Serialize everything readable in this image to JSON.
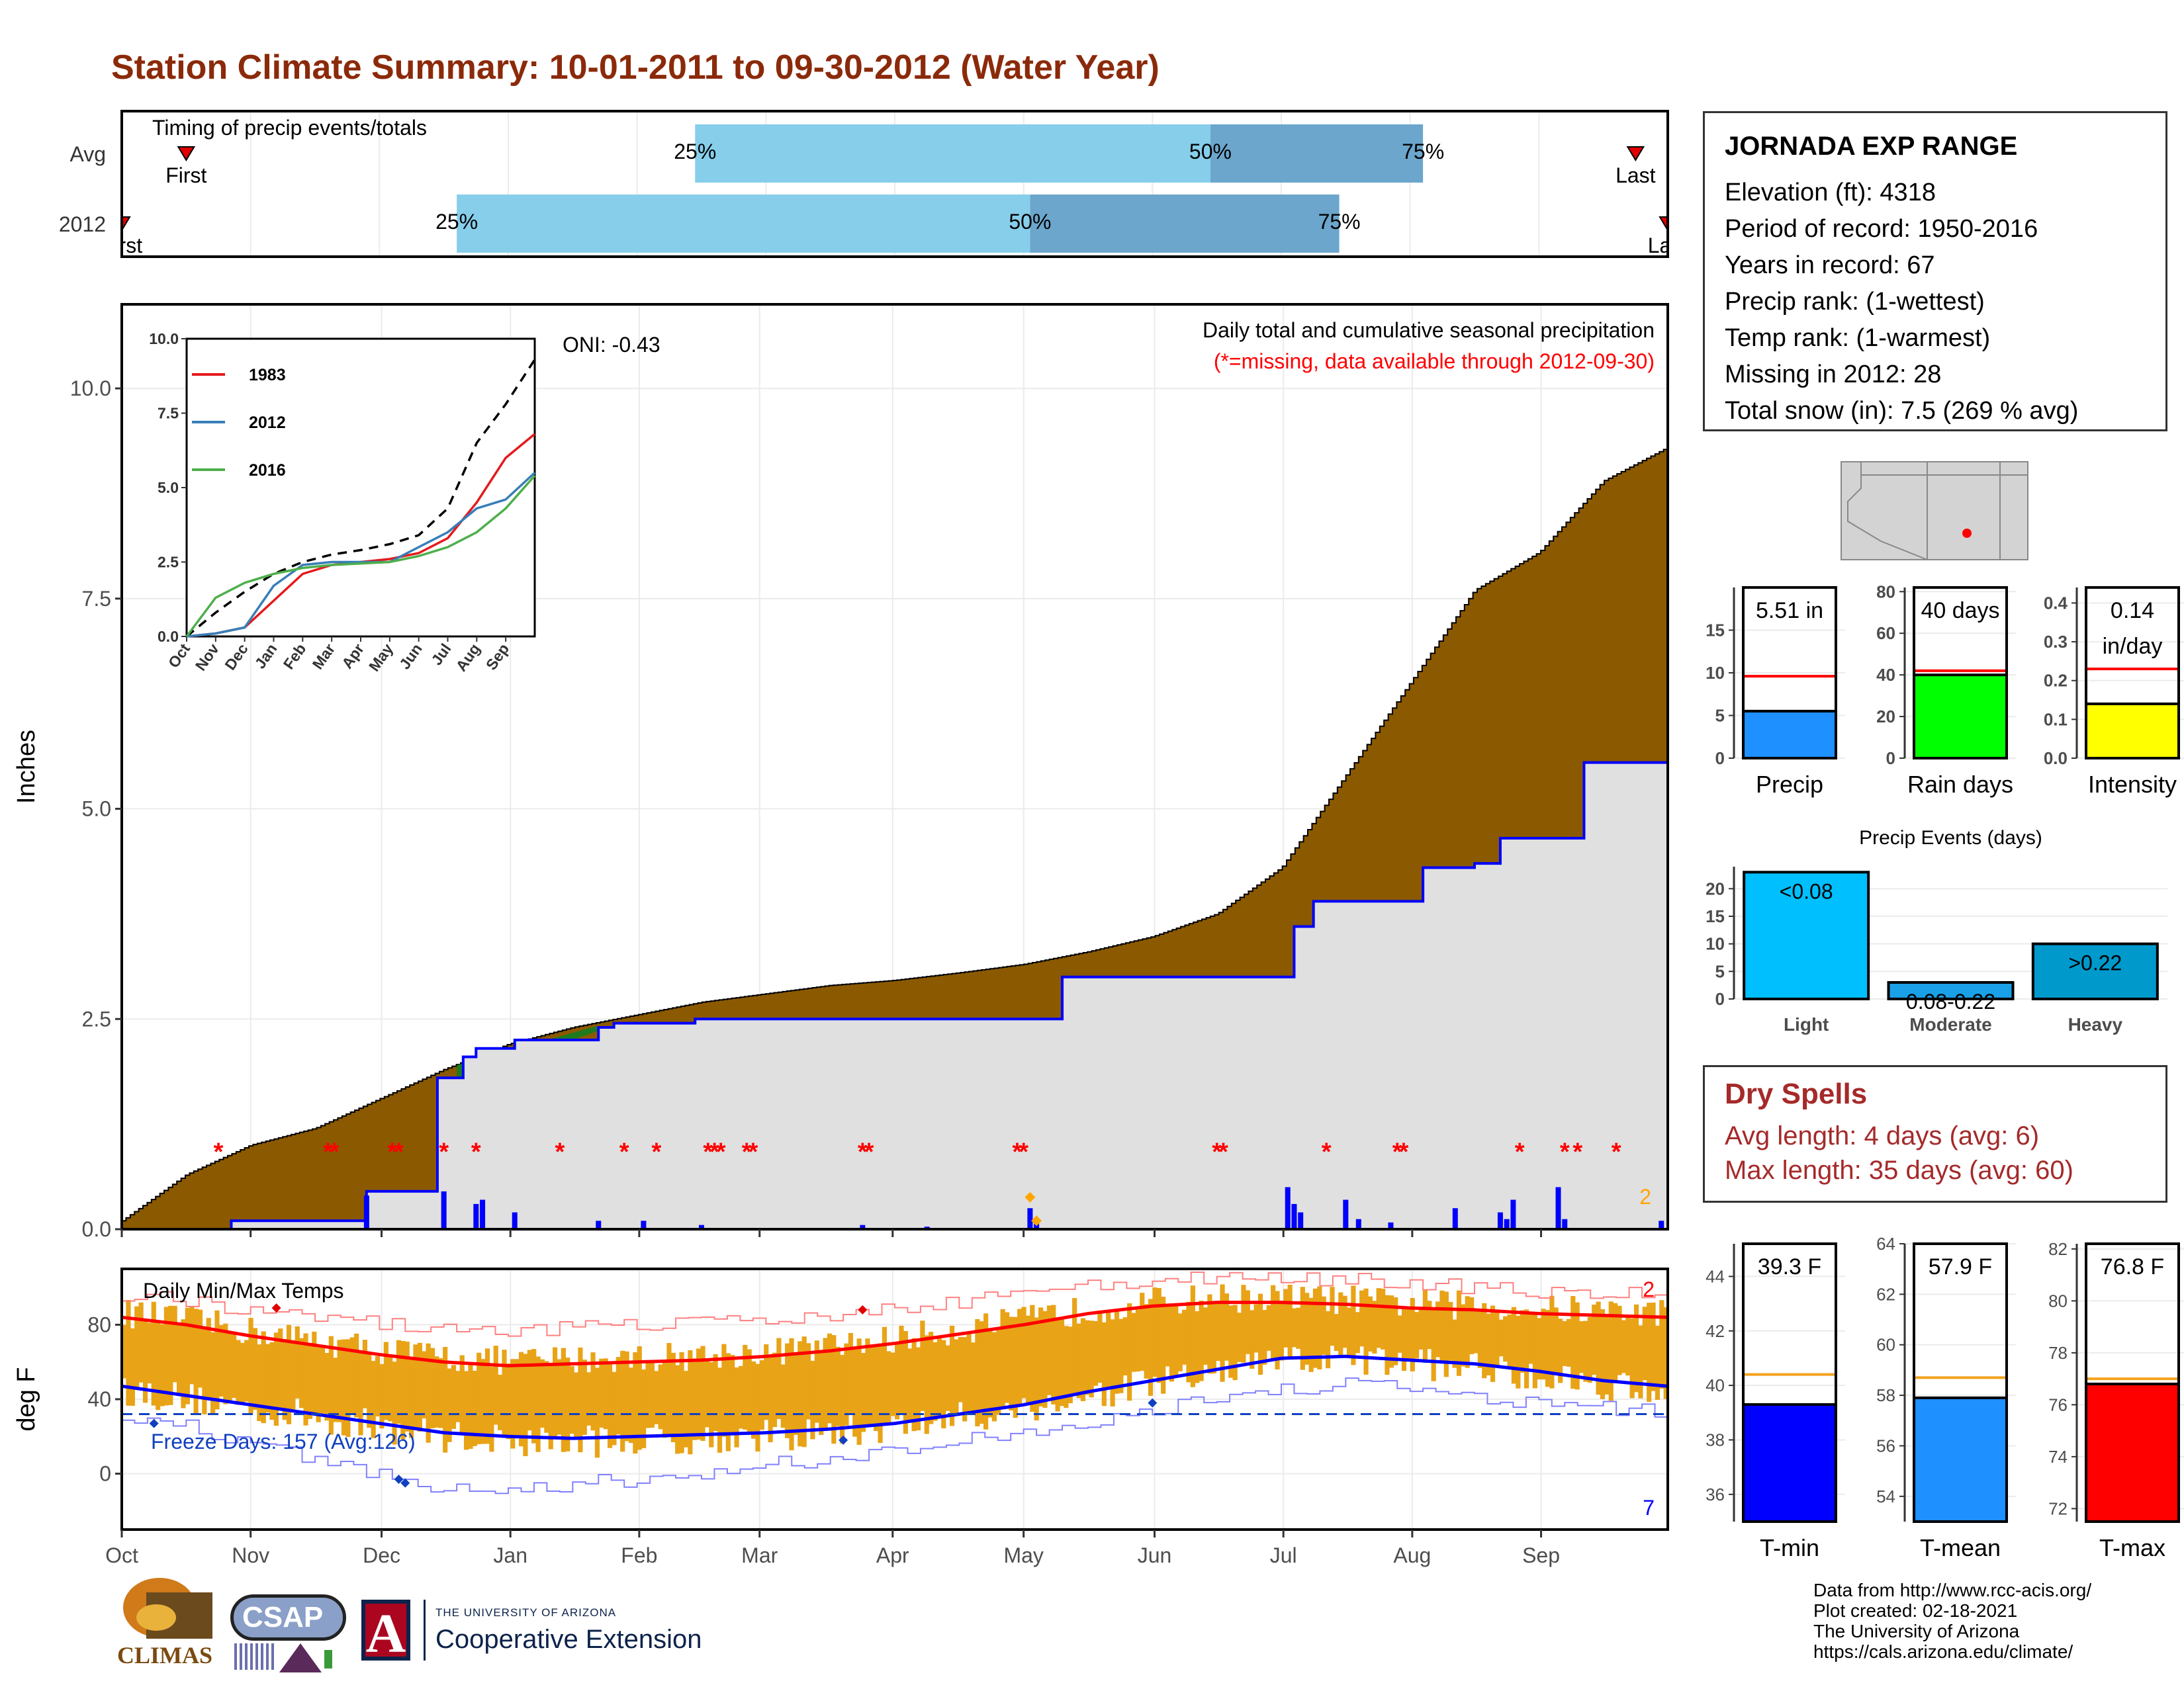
{
  "title": "Station Climate Summary: 10-01-2011 to 09-30-2012 (Water Year)",
  "colors": {
    "title": "#8B2A0A",
    "q_light": "#87CEEB",
    "q_dark": "#6CA6CD",
    "brown": "#8B5A00",
    "green": "#1E7B1E",
    "lightgray": "#E0E0E0",
    "blue": "#0000FF",
    "red": "#FF0000",
    "orange": "#E8A317",
    "avg_line": "#F4A21F",
    "precip_bar": "#1E90FF",
    "raindays_bar": "#00FF00",
    "intensity_bar": "#FFFF00",
    "light_bar": "#00BFFF",
    "moderate_bar": "#1AA0E6",
    "heavy_bar": "#0099CC",
    "tmin_bar": "#0000FF",
    "tmean_bar": "#1E90FF",
    "tmax_bar": "#FF0000",
    "dryspell": "#A52A2A"
  },
  "timing": {
    "title": "Timing of precip events/totals",
    "rows": [
      {
        "label": "Avg",
        "first_label": "First",
        "last_label": "Last",
        "first": 0.5,
        "last": 11.75,
        "q25": 4.45,
        "q50": 8.45,
        "q75": 10.1,
        "q25_label": "25%",
        "q50_label": "50%",
        "q75_label": "75%"
      },
      {
        "label": "2012",
        "first_label": "First",
        "last_label": "Last",
        "first": 0.0,
        "last": 12.0,
        "q25": 2.6,
        "q50": 7.05,
        "q75": 9.45,
        "q25_label": "25%",
        "q50_label": "50%",
        "q75_label": "75%"
      }
    ]
  },
  "precip_panel": {
    "ylabel": "Inches",
    "note1": "Daily total and cumulative seasonal precipitation",
    "note2": "(*=missing, data available through 2012-09-30)",
    "oni": "ONI: -0.43",
    "corner_value": "2",
    "yticks": [
      0.0,
      2.5,
      5.0,
      7.5,
      10.0
    ],
    "ytick_labels": [
      "0.0",
      "2.5",
      "5.0",
      "7.5",
      "10.0"
    ],
    "ylim": [
      0,
      11
    ]
  },
  "inset": {
    "xticks": [
      "Oct",
      "Nov",
      "Dec",
      "Jan",
      "Feb",
      "Mar",
      "Apr",
      "May",
      "Jun",
      "Jul",
      "Aug",
      "Sep"
    ],
    "yticks": [
      0.0,
      2.5,
      5.0,
      7.5,
      10.0
    ],
    "ytick_labels": [
      "0.0",
      "2.5",
      "5.0",
      "7.5",
      "10.0"
    ],
    "legend": [
      {
        "name": "1983",
        "color": "#E41A1C"
      },
      {
        "name": "2012",
        "color": "#377EB8"
      },
      {
        "name": "2016",
        "color": "#4DAF4A"
      }
    ]
  },
  "temp_panel": {
    "title": "Daily Min/Max Temps",
    "ylabel": "deg F",
    "freeze_label": "Freeze Days: 157 (Avg:126)",
    "corner_top": "2",
    "corner_bottom": "7",
    "yticks": [
      0,
      40,
      80
    ],
    "ytick_labels": [
      "0",
      "40",
      "80"
    ]
  },
  "months": [
    "Oct",
    "Nov",
    "Dec",
    "Jan",
    "Feb",
    "Mar",
    "Apr",
    "May",
    "Jun",
    "Jul",
    "Aug",
    "Sep"
  ],
  "station": {
    "name": "JORNADA EXP RANGE",
    "lines": [
      "Elevation (ft): 4318",
      "Period of record: 1950-2016",
      "Years in record: 67",
      "Precip rank:  (1-wettest)",
      "Temp rank:  (1-warmest)",
      "Missing in 2012: 28",
      "Total snow (in): 7.5 (269 % avg)"
    ]
  },
  "summary_bars": [
    {
      "label": "Precip",
      "value_label": "5.51 in",
      "value": 5.51,
      "avg": 9.6,
      "ymax": 20,
      "ticks": [
        0,
        5,
        10,
        15
      ],
      "tick_labels": [
        "0",
        "5",
        "10",
        "15"
      ],
      "color_key": "precip_bar"
    },
    {
      "label": "Rain days",
      "value_label": "40 days",
      "value": 40,
      "avg": 42,
      "ymax": 82,
      "ticks": [
        0,
        20,
        40,
        60,
        80
      ],
      "tick_labels": [
        "0",
        "20",
        "40",
        "60",
        "80"
      ],
      "color_key": "raindays_bar"
    },
    {
      "label": "Intensity",
      "value_label": "0.14",
      "value_label2": "in/day",
      "value": 0.14,
      "avg": 0.23,
      "ymax": 0.44,
      "ticks": [
        0.0,
        0.1,
        0.2,
        0.3,
        0.4
      ],
      "tick_labels": [
        "0.0",
        "0.1",
        "0.2",
        "0.3",
        "0.4"
      ],
      "color_key": "intensity_bar"
    }
  ],
  "events": {
    "title": "Precip Events (days)",
    "categories": [
      "Light",
      "Moderate",
      "Heavy"
    ],
    "bar_labels": [
      "<0.08",
      "0.08-0.22",
      ">0.22"
    ],
    "values": [
      23,
      3,
      10
    ],
    "ymax": 24,
    "ticks": [
      0,
      5,
      10,
      15,
      20
    ],
    "tick_labels": [
      "0",
      "5",
      "10",
      "15",
      "20"
    ]
  },
  "dry_spells": {
    "title": "Dry Spells",
    "line1": "Avg length: 4 days (avg: 6)",
    "line2": "Max length: 35 days (avg: 60)"
  },
  "temp_bars": [
    {
      "label": "T-min",
      "value_label": "39.3 F",
      "value": 39.3,
      "avg": 40.4,
      "ymin": 35,
      "ymax": 45.2,
      "ticks": [
        36,
        38,
        40,
        42,
        44
      ],
      "tick_labels": [
        "36",
        "38",
        "40",
        "42",
        "44"
      ],
      "color_key": "tmin_bar"
    },
    {
      "label": "T-mean",
      "value_label": "57.9 F",
      "value": 57.9,
      "avg": 58.7,
      "ymin": 53,
      "ymax": 64,
      "ticks": [
        54,
        56,
        58,
        60,
        62,
        64
      ],
      "tick_labels": [
        "54",
        "56",
        "58",
        "60",
        "62",
        "64"
      ],
      "color_key": "tmean_bar"
    },
    {
      "label": "T-max",
      "value_label": "76.8 F",
      "value": 76.8,
      "avg": 77.0,
      "ymin": 71.5,
      "ymax": 82.2,
      "ticks": [
        72,
        74,
        76,
        78,
        80,
        82
      ],
      "tick_labels": [
        "72",
        "74",
        "76",
        "78",
        "80",
        "82"
      ],
      "color_key": "tmax_bar"
    }
  ],
  "credits": [
    "Data from http://www.rcc-acis.org/",
    "Plot created: 02-18-2021",
    "The University of Arizona",
    "https://cals.arizona.edu/climate/"
  ],
  "logos": {
    "climas": "CLIMAS",
    "csap": "CSAP",
    "ua_small": "THE UNIVERSITY OF ARIZONA",
    "ua_big": "Cooperative Extension",
    "ua_letter": "A"
  },
  "chart_data": [
    {
      "type": "area",
      "title": "Daily total and cumulative seasonal precipitation",
      "ylabel": "Inches",
      "ylim": [
        0,
        11
      ],
      "x_unit": "month index from Oct 1 (0-12)",
      "avg_cumulative": {
        "x": [
          0,
          0.5,
          1,
          1.5,
          2,
          2.5,
          3,
          3.5,
          4,
          4.5,
          5,
          5.5,
          6,
          6.5,
          7,
          7.5,
          8,
          8.5,
          9,
          9.5,
          10,
          10.5,
          11,
          11.5,
          12
        ],
        "y": [
          0.1,
          0.65,
          1.0,
          1.2,
          1.55,
          1.9,
          2.2,
          2.4,
          2.55,
          2.7,
          2.8,
          2.9,
          2.96,
          3.05,
          3.15,
          3.3,
          3.48,
          3.75,
          4.3,
          5.4,
          6.5,
          7.6,
          8.05,
          8.9,
          9.3
        ]
      },
      "observed_2012": {
        "x": [
          0,
          0.85,
          1.75,
          1.9,
          2.1,
          2.45,
          2.65,
          2.75,
          3.05,
          3.7,
          3.82,
          4.45,
          7.05,
          7.3,
          8.9,
          9.1,
          9.25,
          10.1,
          10.5,
          10.7,
          11.25,
          11.35,
          12
        ],
        "y": [
          0,
          0.1,
          0.1,
          0.45,
          0.45,
          1.8,
          2.05,
          2.15,
          2.25,
          2.4,
          2.45,
          2.5,
          2.5,
          3.0,
          3.0,
          3.6,
          3.9,
          4.3,
          4.35,
          4.65,
          4.65,
          5.55,
          5.55
        ]
      },
      "daily_bars": {
        "x": [
          1.9,
          2.5,
          2.75,
          2.8,
          3.05,
          3.7,
          4.05,
          4.5,
          5.75,
          6.25,
          7.05,
          7.1,
          9.05,
          9.1,
          9.15,
          9.5,
          9.6,
          9.85,
          10.35,
          10.7,
          10.75,
          10.8,
          11.15,
          11.2,
          11.95
        ],
        "y": [
          0.4,
          0.45,
          0.3,
          0.35,
          0.2,
          0.1,
          0.1,
          0.05,
          0.05,
          0.03,
          0.25,
          0.12,
          0.5,
          0.3,
          0.2,
          0.35,
          0.12,
          0.08,
          0.25,
          0.2,
          0.12,
          0.35,
          0.5,
          0.12,
          0.1
        ]
      },
      "missing_days_x": [
        0.75,
        1.6,
        1.65,
        2.1,
        2.15,
        2.5,
        2.75,
        3.4,
        3.9,
        4.15,
        4.55,
        4.6,
        4.65,
        4.85,
        4.9,
        5.75,
        5.8,
        6.95,
        7.0,
        8.5,
        8.55,
        9.35,
        9.9,
        9.95,
        10.85,
        11.2,
        11.3,
        11.6
      ],
      "diamonds": [
        {
          "x": 7.05,
          "y": 0.38,
          "color": "#FFA500"
        },
        {
          "x": 7.1,
          "y": 0.1,
          "color": "#FFA500"
        }
      ]
    },
    {
      "type": "line",
      "title": "cumulative precipitation inset",
      "x": [
        0,
        1,
        2,
        3,
        4,
        5,
        6,
        7,
        8,
        9,
        10,
        11,
        12
      ],
      "ylim": [
        0,
        10
      ],
      "series": [
        {
          "name": "",
          "values": [
            0,
            0.8,
            1.5,
            2.1,
            2.5,
            2.75,
            2.9,
            3.1,
            3.4,
            4.3,
            6.5,
            7.8,
            9.3
          ]
        },
        {
          "name": "1983",
          "values": [
            0,
            0.1,
            0.3,
            1.2,
            2.1,
            2.4,
            2.5,
            2.6,
            2.8,
            3.3,
            4.5,
            6.0,
            6.8
          ]
        },
        {
          "name": "2012",
          "values": [
            0,
            0.1,
            0.3,
            1.7,
            2.4,
            2.5,
            2.5,
            2.5,
            3.0,
            3.5,
            4.3,
            4.6,
            5.5
          ]
        },
        {
          "name": "2016",
          "values": [
            0,
            1.3,
            1.8,
            2.1,
            2.3,
            2.4,
            2.45,
            2.5,
            2.7,
            3.0,
            3.5,
            4.3,
            5.4
          ]
        }
      ]
    },
    {
      "type": "line",
      "title": "Daily Min/Max Temps",
      "ylabel": "deg F",
      "ylim": [
        -30,
        110
      ],
      "x": [
        0,
        0.5,
        1,
        1.5,
        2,
        2.5,
        3,
        3.5,
        4,
        4.5,
        5,
        5.5,
        6,
        6.5,
        7,
        7.5,
        8,
        8.5,
        9,
        9.5,
        10,
        10.5,
        11,
        11.5,
        12
      ],
      "series": [
        {
          "name": "",
          "values": [
            84,
            80,
            74,
            69,
            64,
            60,
            58,
            59,
            60,
            61,
            63,
            66,
            70,
            75,
            80,
            86,
            90,
            92,
            92,
            91,
            89,
            88,
            86,
            85,
            84
          ]
        },
        {
          "name": "",
          "values": [
            47,
            42,
            37,
            32,
            27,
            22,
            20,
            19,
            20,
            21,
            22,
            24,
            27,
            32,
            37,
            44,
            50,
            56,
            62,
            63,
            61,
            59,
            55,
            50,
            47
          ]
        },
        {
          "name": "",
          "values": [
            96,
            93,
            88,
            84,
            80,
            78,
            77,
            78,
            80,
            83,
            84,
            86,
            88,
            92,
            96,
            100,
            104,
            106,
            106,
            104,
            102,
            100,
            98,
            97,
            96
          ]
        },
        {
          "name": "",
          "values": [
            32,
            25,
            15,
            8,
            0,
            -8,
            -10,
            -5,
            -3,
            0,
            5,
            8,
            12,
            18,
            22,
            28,
            34,
            40,
            45,
            48,
            46,
            42,
            38,
            35,
            33
          ]
        }
      ],
      "freeze_threshold": 32
    },
    {
      "type": "bar",
      "categories": [
        "Precip",
        "Rain days",
        "Intensity"
      ],
      "values": [
        5.51,
        40,
        0.14
      ],
      "averages": [
        9.6,
        42,
        0.23
      ]
    },
    {
      "type": "bar",
      "title": "Precip Events (days)",
      "categories": [
        "Light",
        "Moderate",
        "Heavy"
      ],
      "values": [
        23,
        3,
        10
      ]
    },
    {
      "type": "bar",
      "categories": [
        "T-min",
        "T-mean",
        "T-max"
      ],
      "values": [
        39.3,
        57.9,
        76.8
      ],
      "averages": [
        40.4,
        58.7,
        77.0
      ]
    }
  ]
}
